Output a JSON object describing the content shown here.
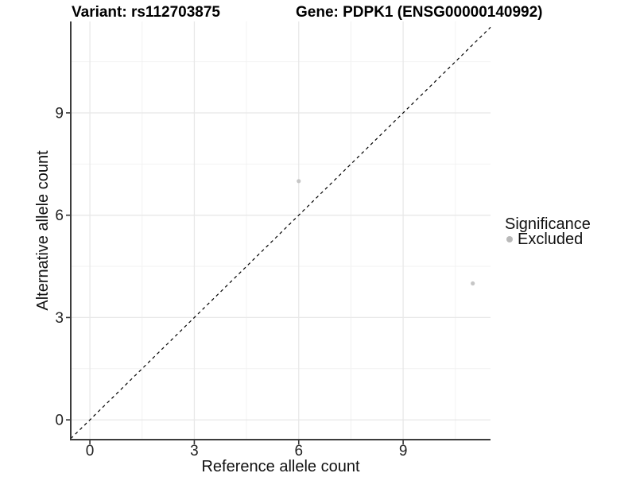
{
  "chart_data": {
    "type": "scatter",
    "title_left": "Variant: rs112703875",
    "title_right": "Gene: PDPK1 (ENSG00000140992)",
    "xlabel": "Reference allele count",
    "ylabel": "Alternative allele count",
    "x_ticks": [
      0,
      3,
      6,
      9
    ],
    "y_ticks": [
      0,
      3,
      6,
      9
    ],
    "x_minor_ticks": [
      1.5,
      4.5,
      7.5,
      10.5
    ],
    "y_minor_ticks": [
      1.5,
      4.5,
      7.5,
      10.5
    ],
    "xlim": [
      -0.55,
      11.51
    ],
    "ylim": [
      -0.58,
      11.68
    ],
    "grid": true,
    "points": [
      {
        "x": 6,
        "y": 7,
        "significance": "Excluded"
      },
      {
        "x": 11,
        "y": 4,
        "significance": "Excluded"
      }
    ],
    "identity_line": {
      "slope": 1,
      "intercept": 0,
      "style": "dashed",
      "color": "#000000"
    },
    "legend": {
      "position": "right",
      "title": "Significance",
      "entries": [
        {
          "label": "Excluded",
          "color": "#b9b9b9"
        }
      ]
    },
    "colors": {
      "point": "#c6c6c6",
      "grid_major": "#e8e8e8",
      "grid_minor": "#f2f2f2",
      "axis_line": "#3c3c3c",
      "tick_mark": "#333333"
    }
  }
}
